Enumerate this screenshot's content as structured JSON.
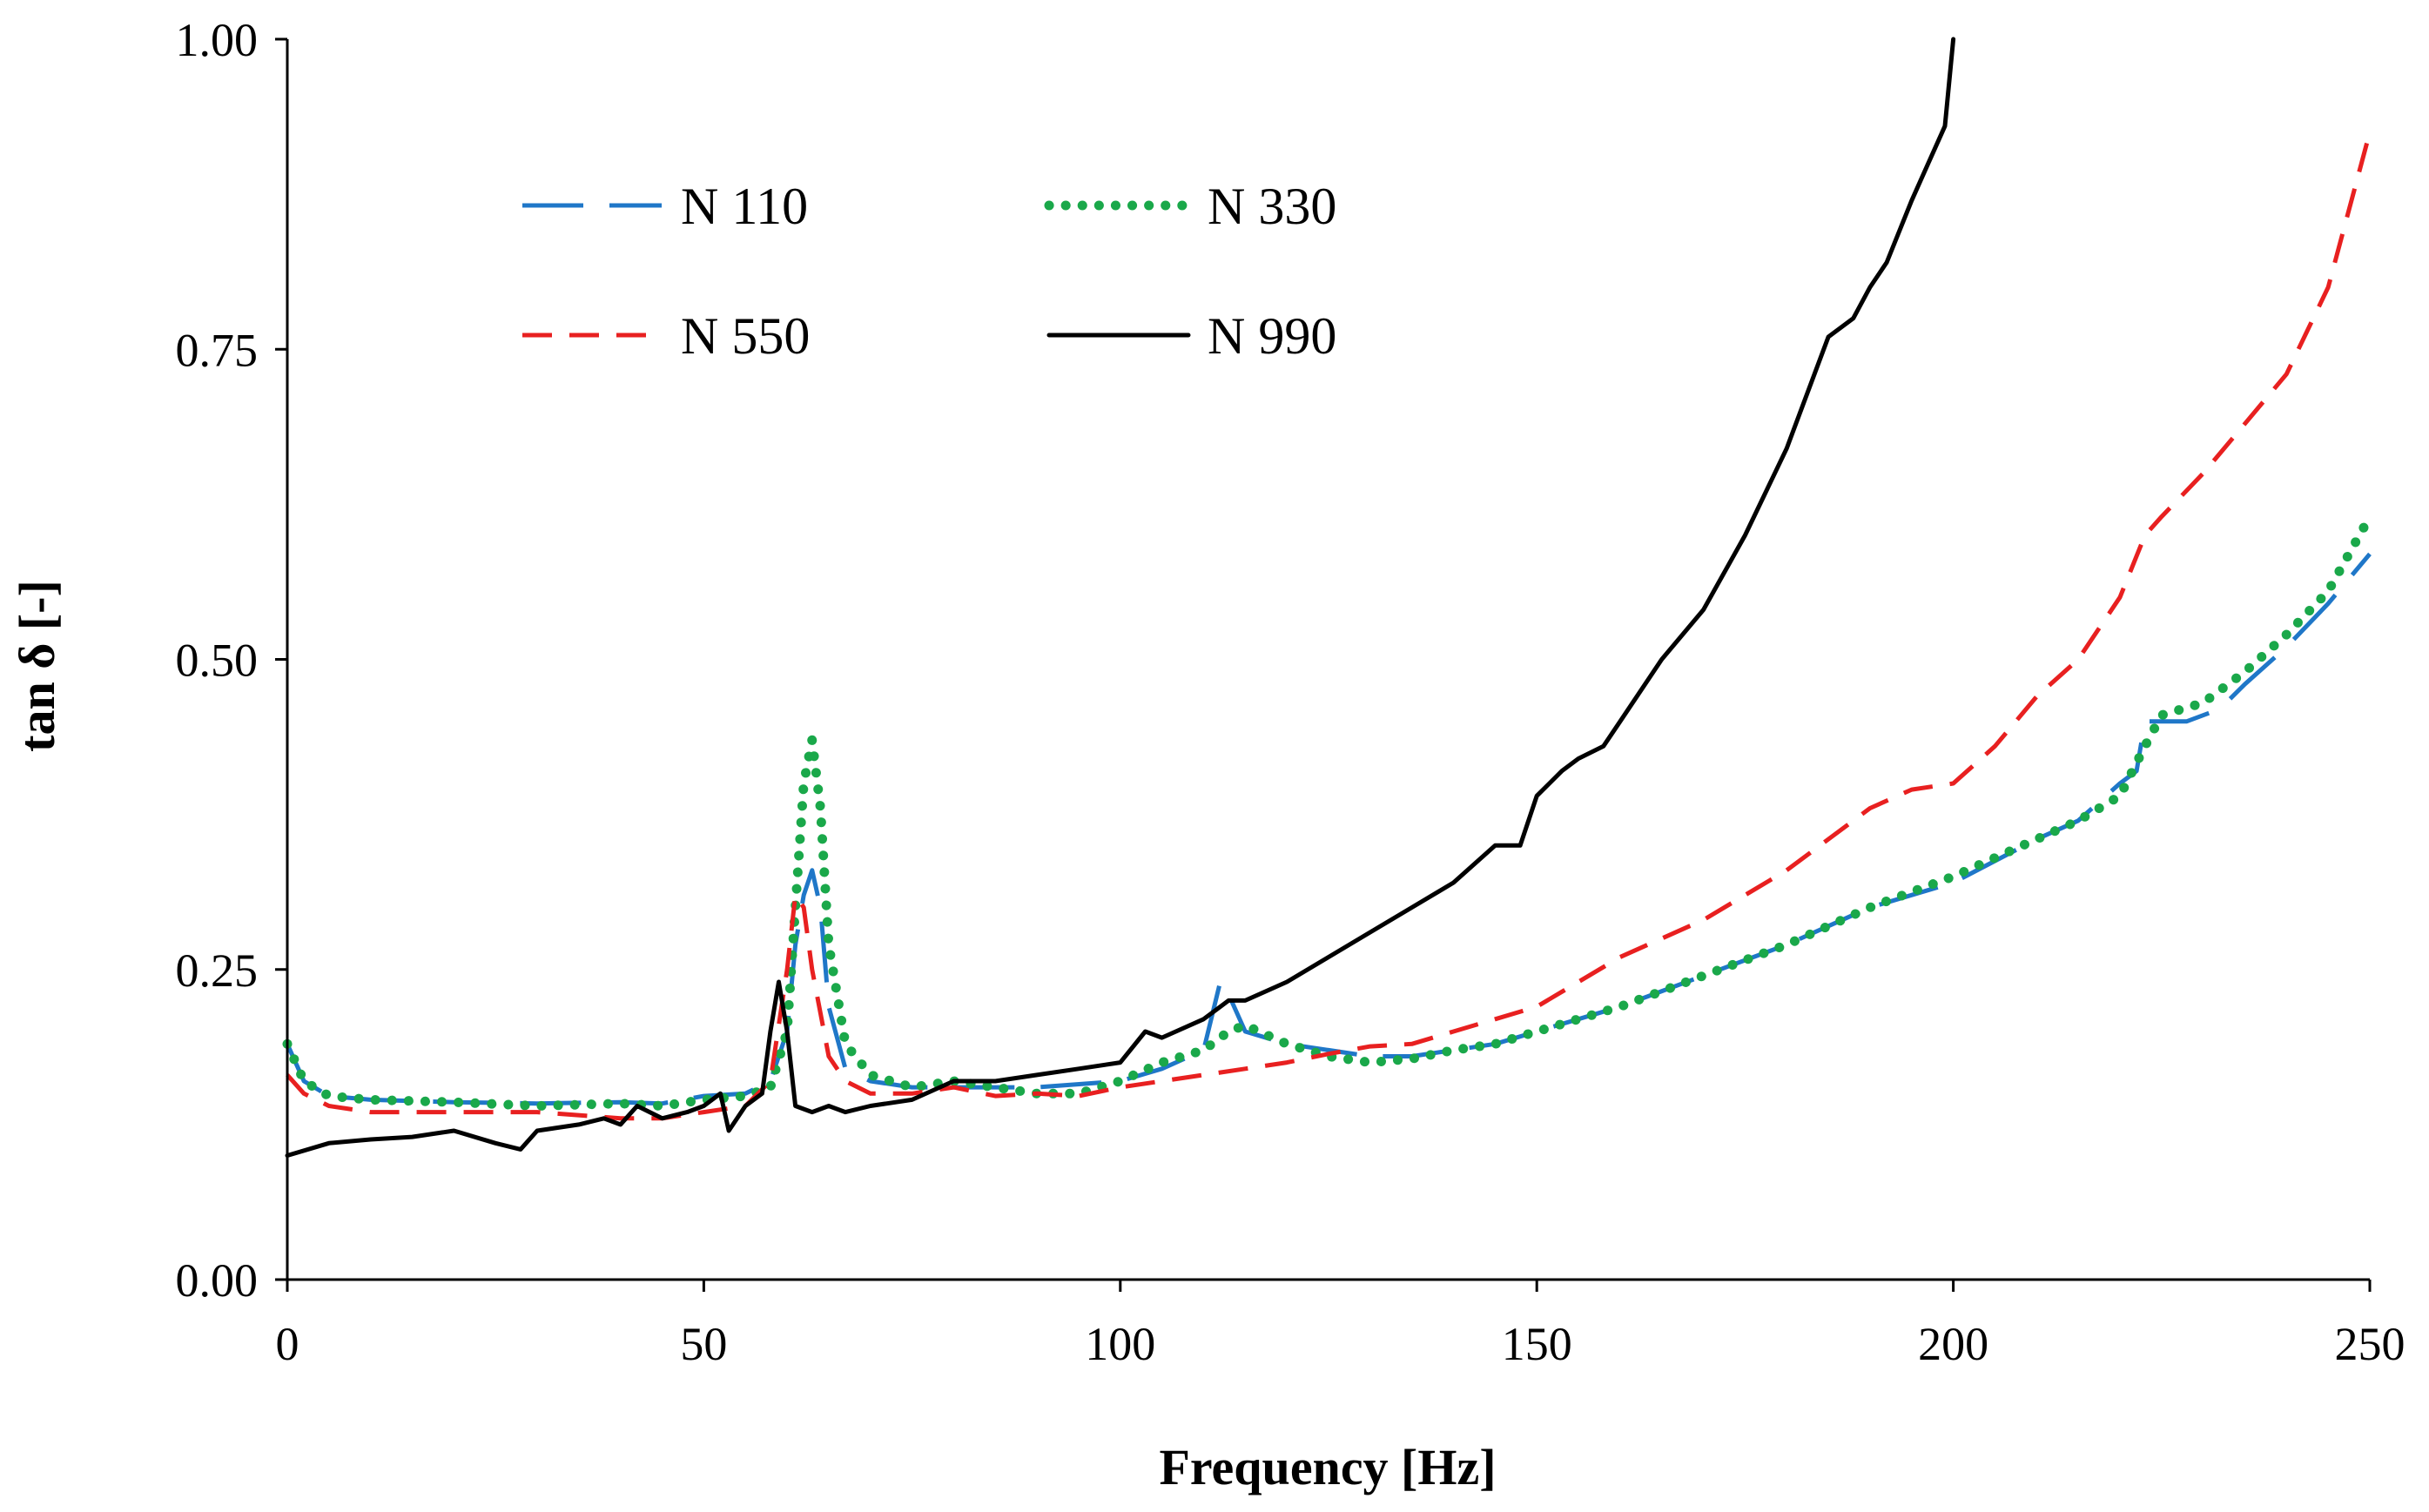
{
  "chart_data": {
    "type": "line",
    "title": "",
    "xlabel": "Frequency  [Hz]",
    "ylabel": "tan δ [-]",
    "xlim": [
      0,
      250
    ],
    "ylim": [
      0,
      1
    ],
    "x_ticks": [
      0,
      50,
      100,
      150,
      200,
      250
    ],
    "y_ticks": [
      0,
      0.25,
      0.5,
      0.75,
      1.0
    ],
    "x_tick_labels": [
      "0",
      "50",
      "100",
      "150",
      "200",
      "250"
    ],
    "y_tick_labels": [
      "0.00",
      "0.25",
      "0.50",
      "0.75",
      "1.00"
    ],
    "grid": false,
    "legend_position": "top-left",
    "series": [
      {
        "name": "N 110",
        "color": "#1f77c8",
        "style": "longdash",
        "points": [
          [
            0,
            0.19
          ],
          [
            2,
            0.16
          ],
          [
            5,
            0.148
          ],
          [
            10,
            0.145
          ],
          [
            20,
            0.143
          ],
          [
            30,
            0.142
          ],
          [
            40,
            0.143
          ],
          [
            45,
            0.142
          ],
          [
            50,
            0.148
          ],
          [
            55,
            0.15
          ],
          [
            58,
            0.16
          ],
          [
            60,
            0.2
          ],
          [
            61,
            0.27
          ],
          [
            62,
            0.31
          ],
          [
            63,
            0.33
          ],
          [
            64,
            0.3
          ],
          [
            65,
            0.22
          ],
          [
            67,
            0.17
          ],
          [
            70,
            0.16
          ],
          [
            75,
            0.155
          ],
          [
            80,
            0.155
          ],
          [
            90,
            0.155
          ],
          [
            100,
            0.16
          ],
          [
            105,
            0.17
          ],
          [
            110,
            0.185
          ],
          [
            112,
            0.24
          ],
          [
            113,
            0.23
          ],
          [
            115,
            0.2
          ],
          [
            120,
            0.19
          ],
          [
            125,
            0.185
          ],
          [
            130,
            0.18
          ],
          [
            135,
            0.18
          ],
          [
            140,
            0.185
          ],
          [
            145,
            0.19
          ],
          [
            150,
            0.2
          ],
          [
            160,
            0.22
          ],
          [
            170,
            0.245
          ],
          [
            180,
            0.27
          ],
          [
            190,
            0.3
          ],
          [
            200,
            0.32
          ],
          [
            210,
            0.355
          ],
          [
            215,
            0.37
          ],
          [
            220,
            0.4
          ],
          [
            222,
            0.41
          ],
          [
            223,
            0.45
          ],
          [
            228,
            0.45
          ],
          [
            232,
            0.46
          ],
          [
            235,
            0.48
          ],
          [
            240,
            0.51
          ],
          [
            245,
            0.545
          ],
          [
            250,
            0.585
          ]
        ]
      },
      {
        "name": "N 330",
        "color": "#1aa84a",
        "style": "dotted",
        "points": [
          [
            0,
            0.19
          ],
          [
            2,
            0.16
          ],
          [
            5,
            0.148
          ],
          [
            10,
            0.145
          ],
          [
            20,
            0.143
          ],
          [
            30,
            0.14
          ],
          [
            40,
            0.142
          ],
          [
            45,
            0.14
          ],
          [
            50,
            0.145
          ],
          [
            55,
            0.148
          ],
          [
            58,
            0.155
          ],
          [
            60,
            0.2
          ],
          [
            61,
            0.3
          ],
          [
            62,
            0.4
          ],
          [
            63,
            0.435
          ],
          [
            64,
            0.38
          ],
          [
            65,
            0.27
          ],
          [
            67,
            0.19
          ],
          [
            70,
            0.165
          ],
          [
            75,
            0.155
          ],
          [
            80,
            0.16
          ],
          [
            90,
            0.15
          ],
          [
            95,
            0.15
          ],
          [
            100,
            0.16
          ],
          [
            105,
            0.175
          ],
          [
            110,
            0.185
          ],
          [
            113,
            0.2
          ],
          [
            115,
            0.205
          ],
          [
            120,
            0.19
          ],
          [
            125,
            0.18
          ],
          [
            130,
            0.175
          ],
          [
            135,
            0.178
          ],
          [
            140,
            0.185
          ],
          [
            145,
            0.19
          ],
          [
            150,
            0.2
          ],
          [
            160,
            0.22
          ],
          [
            170,
            0.245
          ],
          [
            180,
            0.27
          ],
          [
            190,
            0.3
          ],
          [
            200,
            0.325
          ],
          [
            210,
            0.355
          ],
          [
            215,
            0.37
          ],
          [
            220,
            0.39
          ],
          [
            223,
            0.43
          ],
          [
            225,
            0.455
          ],
          [
            230,
            0.465
          ],
          [
            235,
            0.49
          ],
          [
            240,
            0.52
          ],
          [
            245,
            0.555
          ],
          [
            250,
            0.615
          ]
        ]
      },
      {
        "name": "N 550",
        "color": "#e82020",
        "style": "dashed",
        "points": [
          [
            0,
            0.165
          ],
          [
            2,
            0.15
          ],
          [
            5,
            0.14
          ],
          [
            10,
            0.135
          ],
          [
            20,
            0.135
          ],
          [
            30,
            0.135
          ],
          [
            40,
            0.13
          ],
          [
            45,
            0.13
          ],
          [
            50,
            0.135
          ],
          [
            55,
            0.14
          ],
          [
            58,
            0.16
          ],
          [
            60,
            0.25
          ],
          [
            61,
            0.31
          ],
          [
            62,
            0.3
          ],
          [
            63,
            0.25
          ],
          [
            65,
            0.18
          ],
          [
            67,
            0.16
          ],
          [
            70,
            0.15
          ],
          [
            75,
            0.15
          ],
          [
            80,
            0.155
          ],
          [
            85,
            0.148
          ],
          [
            90,
            0.15
          ],
          [
            95,
            0.148
          ],
          [
            100,
            0.155
          ],
          [
            105,
            0.16
          ],
          [
            110,
            0.165
          ],
          [
            115,
            0.17
          ],
          [
            120,
            0.175
          ],
          [
            125,
            0.182
          ],
          [
            130,
            0.188
          ],
          [
            135,
            0.19
          ],
          [
            140,
            0.2
          ],
          [
            145,
            0.21
          ],
          [
            150,
            0.22
          ],
          [
            160,
            0.26
          ],
          [
            170,
            0.29
          ],
          [
            180,
            0.33
          ],
          [
            190,
            0.38
          ],
          [
            195,
            0.395
          ],
          [
            200,
            0.4
          ],
          [
            205,
            0.43
          ],
          [
            210,
            0.47
          ],
          [
            215,
            0.5
          ],
          [
            220,
            0.55
          ],
          [
            223,
            0.6
          ],
          [
            225,
            0.615
          ],
          [
            230,
            0.65
          ],
          [
            235,
            0.69
          ],
          [
            240,
            0.73
          ],
          [
            245,
            0.8
          ],
          [
            250,
            0.925
          ]
        ]
      },
      {
        "name": "N 990",
        "color": "#000000",
        "style": "solid",
        "points": [
          [
            0,
            0.1
          ],
          [
            5,
            0.11
          ],
          [
            10,
            0.113
          ],
          [
            15,
            0.115
          ],
          [
            20,
            0.12
          ],
          [
            25,
            0.11
          ],
          [
            28,
            0.105
          ],
          [
            30,
            0.12
          ],
          [
            35,
            0.125
          ],
          [
            38,
            0.13
          ],
          [
            40,
            0.125
          ],
          [
            42,
            0.14
          ],
          [
            45,
            0.13
          ],
          [
            48,
            0.135
          ],
          [
            50,
            0.14
          ],
          [
            52,
            0.15
          ],
          [
            53,
            0.12
          ],
          [
            55,
            0.14
          ],
          [
            57,
            0.15
          ],
          [
            58,
            0.2
          ],
          [
            59,
            0.24
          ],
          [
            60,
            0.2
          ],
          [
            61,
            0.14
          ],
          [
            63,
            0.135
          ],
          [
            65,
            0.14
          ],
          [
            67,
            0.135
          ],
          [
            70,
            0.14
          ],
          [
            75,
            0.145
          ],
          [
            80,
            0.16
          ],
          [
            85,
            0.16
          ],
          [
            90,
            0.165
          ],
          [
            95,
            0.17
          ],
          [
            100,
            0.175
          ],
          [
            103,
            0.2
          ],
          [
            105,
            0.195
          ],
          [
            110,
            0.21
          ],
          [
            113,
            0.225
          ],
          [
            115,
            0.225
          ],
          [
            120,
            0.24
          ],
          [
            125,
            0.26
          ],
          [
            130,
            0.28
          ],
          [
            135,
            0.3
          ],
          [
            140,
            0.32
          ],
          [
            145,
            0.35
          ],
          [
            148,
            0.35
          ],
          [
            150,
            0.39
          ],
          [
            153,
            0.41
          ],
          [
            155,
            0.42
          ],
          [
            158,
            0.43
          ],
          [
            160,
            0.45
          ],
          [
            165,
            0.5
          ],
          [
            170,
            0.54
          ],
          [
            175,
            0.6
          ],
          [
            180,
            0.67
          ],
          [
            185,
            0.76
          ],
          [
            188,
            0.775
          ],
          [
            190,
            0.8
          ],
          [
            192,
            0.82
          ],
          [
            195,
            0.87
          ],
          [
            197,
            0.9
          ],
          [
            199,
            0.93
          ],
          [
            200,
            1.0
          ]
        ]
      }
    ]
  }
}
